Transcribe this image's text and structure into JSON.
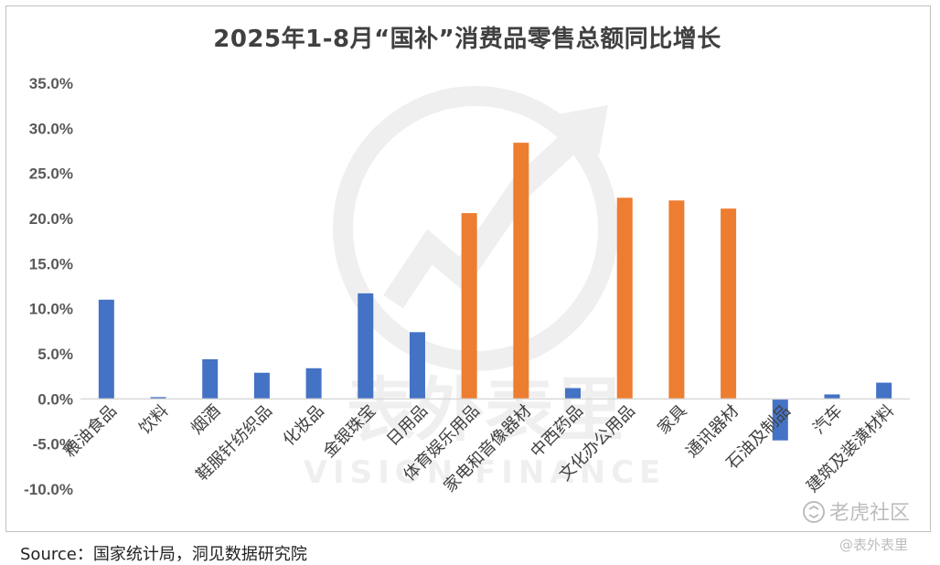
{
  "chart_data": {
    "type": "bar",
    "title": "2025年1-8月“国补”消费品零售总额同比增长",
    "ylim": [
      -10,
      35
    ],
    "yticks": [
      "35.0%",
      "30.0%",
      "25.0%",
      "20.0%",
      "15.0%",
      "10.0%",
      "5.0%",
      "0.0%",
      "-5.0%",
      "-10.0%"
    ],
    "ytick_values": [
      35,
      30,
      25,
      20,
      15,
      10,
      5,
      0,
      -5,
      -10
    ],
    "categories": [
      "粮油食品",
      "饮料",
      "烟酒",
      "鞋服针纺织品",
      "化妆品",
      "金银珠宝",
      "日用品",
      "体育娱乐用品",
      "家电和音像器材",
      "中西药品",
      "文化办公用品",
      "家具",
      "通讯器材",
      "石油及制品",
      "汽车",
      "建筑及装潢材料"
    ],
    "values": [
      11.0,
      0.2,
      4.4,
      2.9,
      3.4,
      11.7,
      7.4,
      20.6,
      28.4,
      1.2,
      22.3,
      22.0,
      21.1,
      -4.6,
      0.5,
      1.8
    ],
    "highlight": [
      false,
      false,
      false,
      false,
      false,
      false,
      false,
      true,
      true,
      false,
      true,
      true,
      true,
      false,
      false,
      false
    ],
    "colors": {
      "default": "#4472C4",
      "highlight": "#ED7D31"
    },
    "legend": "none",
    "grid": false
  },
  "source": "Source：国家统计局，洞见数据研究院",
  "watermark": {
    "center_text": "表外表里",
    "center_subtext": "VISION FINANCE",
    "brand": "老虎社区",
    "sub": "@表外表里"
  }
}
